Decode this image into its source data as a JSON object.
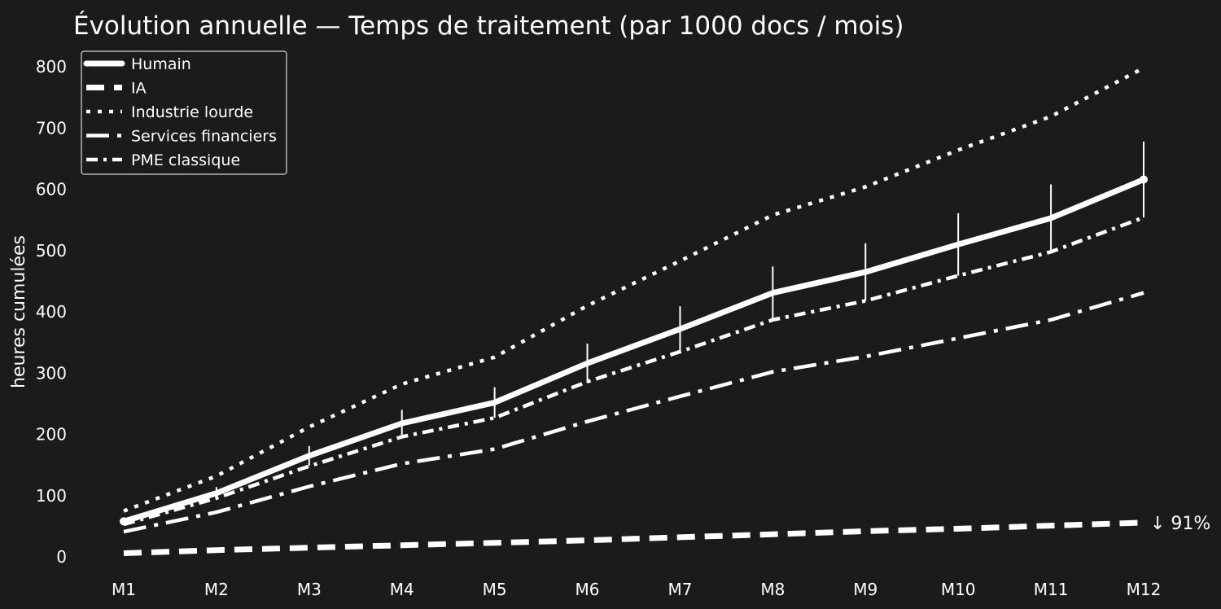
{
  "chart_data": {
    "type": "line",
    "title": "Évolution annuelle — Temps de traitement (par 1000 docs / mois)",
    "xlabel": "",
    "ylabel": "heures cumulées",
    "categories": [
      "M1",
      "M2",
      "M3",
      "M4",
      "M5",
      "M6",
      "M7",
      "M8",
      "M9",
      "M10",
      "M11",
      "M12"
    ],
    "ylim": [
      -25,
      830
    ],
    "yticks": [
      0,
      100,
      200,
      300,
      400,
      500,
      600,
      700,
      800
    ],
    "grid": false,
    "legend_position": "top-left",
    "series": [
      {
        "name": "Humain",
        "style": "solid",
        "values": [
          58,
          104,
          165,
          218,
          252,
          316,
          372,
          431,
          465,
          510,
          553,
          616
        ],
        "errors": [
          5,
          10,
          16,
          22,
          25,
          32,
          37,
          43,
          47,
          51,
          55,
          62
        ]
      },
      {
        "name": "IA",
        "style": "dashed",
        "values": [
          6,
          11,
          15,
          19,
          23,
          27,
          32,
          37,
          42,
          46,
          51,
          56
        ]
      },
      {
        "name": "Industrie lourde",
        "style": "dotted",
        "values": [
          75,
          132,
          212,
          282,
          326,
          410,
          483,
          558,
          604,
          664,
          719,
          798
        ]
      },
      {
        "name": "Services financiers",
        "style": "longdash-dot",
        "values": [
          41,
          73,
          115,
          152,
          176,
          221,
          262,
          302,
          327,
          357,
          387,
          431
        ]
      },
      {
        "name": "PME classique",
        "style": "dash-dot",
        "values": [
          53,
          96,
          148,
          196,
          227,
          286,
          335,
          387,
          418,
          459,
          498,
          554
        ]
      }
    ],
    "annotations": [
      {
        "text": "↓ 91%",
        "x": "M12",
        "y": 56
      }
    ],
    "colors": {
      "background": "#1b1b1b",
      "foreground": "#ffffff"
    }
  }
}
